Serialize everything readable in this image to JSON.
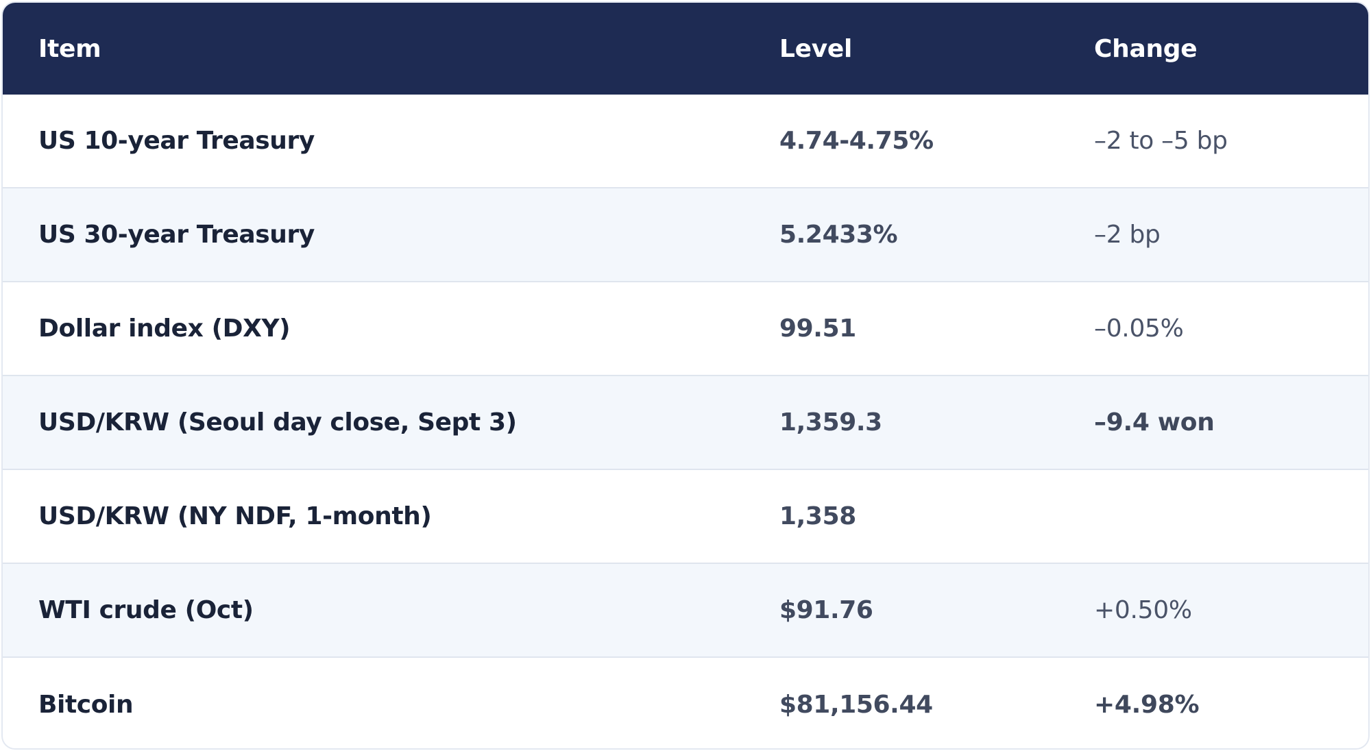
{
  "header": {
    "item": "Item",
    "level": "Level",
    "change": "Change"
  },
  "rows": [
    {
      "item": "US 10-year Treasury",
      "level": "4.74-4.75%",
      "change": "–2 to –5 bp"
    },
    {
      "item": "US 30-year Treasury",
      "level": "5.2433%",
      "change": "–2 bp"
    },
    {
      "item": "Dollar index (DXY)",
      "level": "99.51",
      "change": "–0.05%"
    },
    {
      "item": "USD/KRW (Seoul day close, Sept 3)",
      "level": "1,359.3",
      "change": "–9.4 won"
    },
    {
      "item": "USD/KRW (NY NDF, 1-month)",
      "level": "1,358",
      "change": ""
    },
    {
      "item": "WTI crude (Oct)",
      "level": "$91.76",
      "change": "+0.50%"
    },
    {
      "item": "Bitcoin",
      "level": "$81,156.44",
      "change": "+4.98%"
    }
  ],
  "colors": {
    "header_bg": "#1e2b53",
    "alt_row_bg": "#f3f7fc",
    "border": "#dfe5ee"
  }
}
